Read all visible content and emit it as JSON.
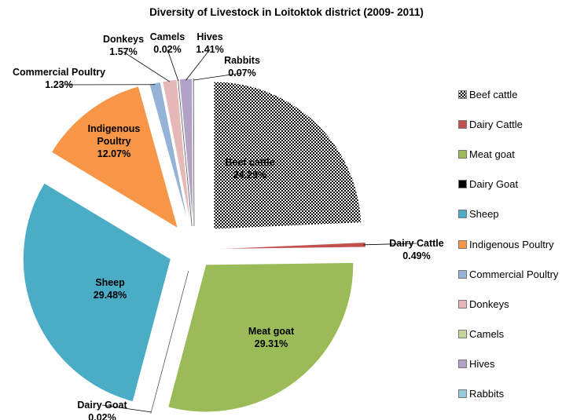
{
  "chart_data": {
    "type": "pie",
    "title": "Diversity of Livestock in Loitoktok district (2009- 2011)",
    "categories": [
      "Beef cattle",
      "Dairy Cattle",
      "Meat goat",
      "Dairy Goat",
      "Sheep",
      "Indigenous Poultry",
      "Commercial Poultry",
      "Donkeys",
      "Camels",
      "Hives",
      "Rabbits"
    ],
    "values": [
      24.29,
      0.49,
      29.31,
      0.02,
      29.48,
      12.07,
      1.23,
      1.57,
      0.02,
      1.41,
      0.07
    ],
    "value_labels": [
      "24.29%",
      "0.49%",
      "29.31%",
      "0.02%",
      "29.48%",
      "12.07%",
      "1.23%",
      "1.57%",
      "0.02%",
      "1.41%",
      "0.07%"
    ],
    "colors": [
      "#000000",
      "#c0504d",
      "#9bbb59",
      "#000000",
      "#4bacc6",
      "#f79646",
      "#95b3d7",
      "#e6b9b8",
      "#c3d69b",
      "#b3a2c7",
      "#93cddd"
    ],
    "pattern": [
      "checker",
      null,
      null,
      null,
      null,
      null,
      null,
      null,
      null,
      null,
      null
    ],
    "legend": "right"
  }
}
